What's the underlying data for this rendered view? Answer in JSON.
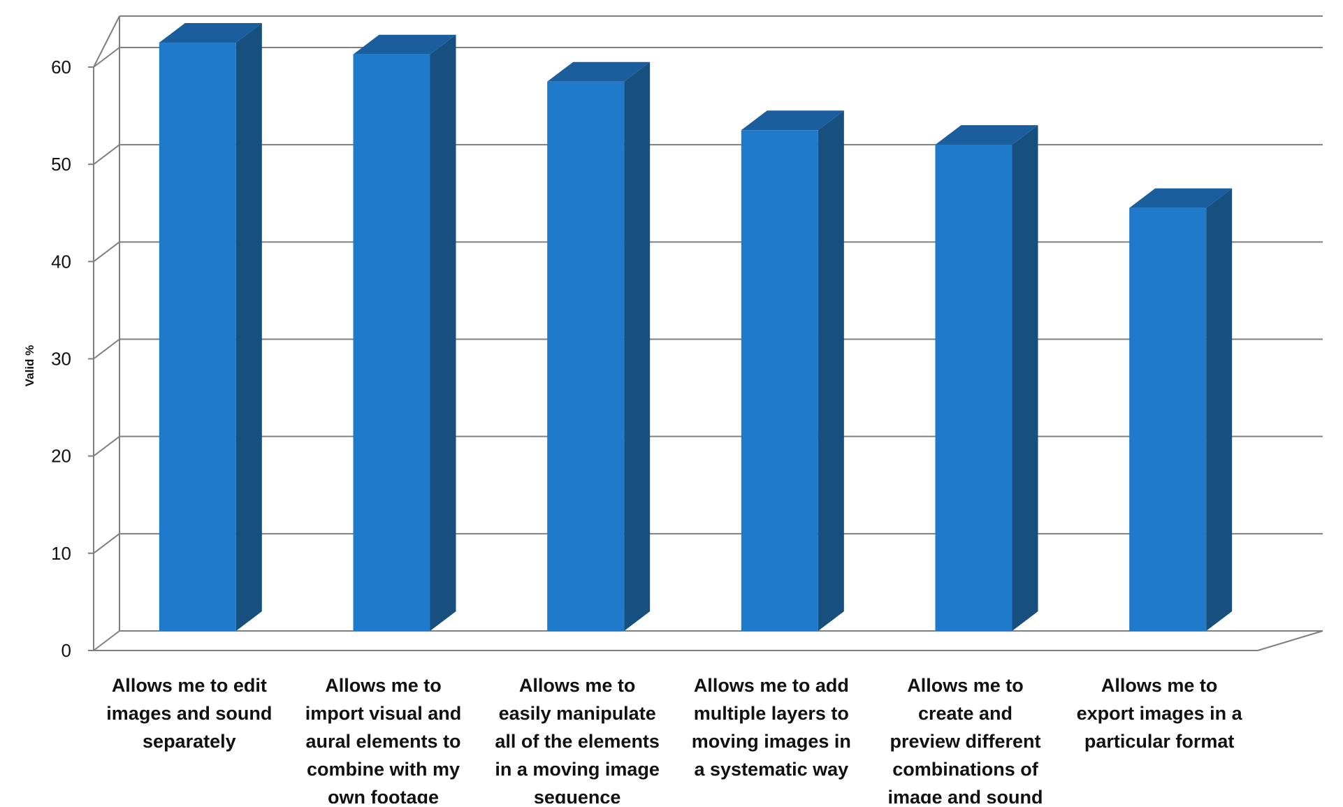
{
  "chart_data": {
    "type": "bar",
    "style": "3d-column",
    "title": "",
    "xlabel": "",
    "ylabel": "Valid %",
    "ylim": [
      0,
      60
    ],
    "yticks": [
      0,
      10,
      20,
      30,
      40,
      50,
      60
    ],
    "grid": true,
    "legend": "none",
    "categories": [
      "Allows me to edit images and sound separately",
      "Allows me to import visual and aural elements to combine with my own footage",
      "Allows me to easily manipulate all of the elements in a moving image sequence",
      "Allows me to add multiple layers to moving images in a systematic way",
      "Allows me to create and preview different combinations of image and sound",
      "Allows me to export images in a particular format"
    ],
    "category_lines": [
      [
        "Allows me to edit",
        "images and sound",
        "separately"
      ],
      [
        "Allows me to",
        "import visual and",
        "aural elements to",
        "combine with my",
        "own footage"
      ],
      [
        "Allows me to",
        "easily manipulate",
        "all of the elements",
        "in a moving image",
        "sequence"
      ],
      [
        "Allows me to add",
        "multiple layers to",
        "moving images in",
        "a systematic way"
      ],
      [
        "Allows me to",
        "create and",
        "preview different",
        "combinations of",
        "image and sound"
      ],
      [
        "Allows me to",
        "export images in a",
        "particular format"
      ]
    ],
    "values": [
      60.5,
      59.3,
      56.5,
      51.5,
      50.0,
      43.5
    ],
    "colors": {
      "bar_front": "#1f7acb",
      "bar_side": "#17507f",
      "bar_top": "#1a5e9e",
      "grid": "#7f7f7f",
      "axis_text": "#111111"
    }
  }
}
